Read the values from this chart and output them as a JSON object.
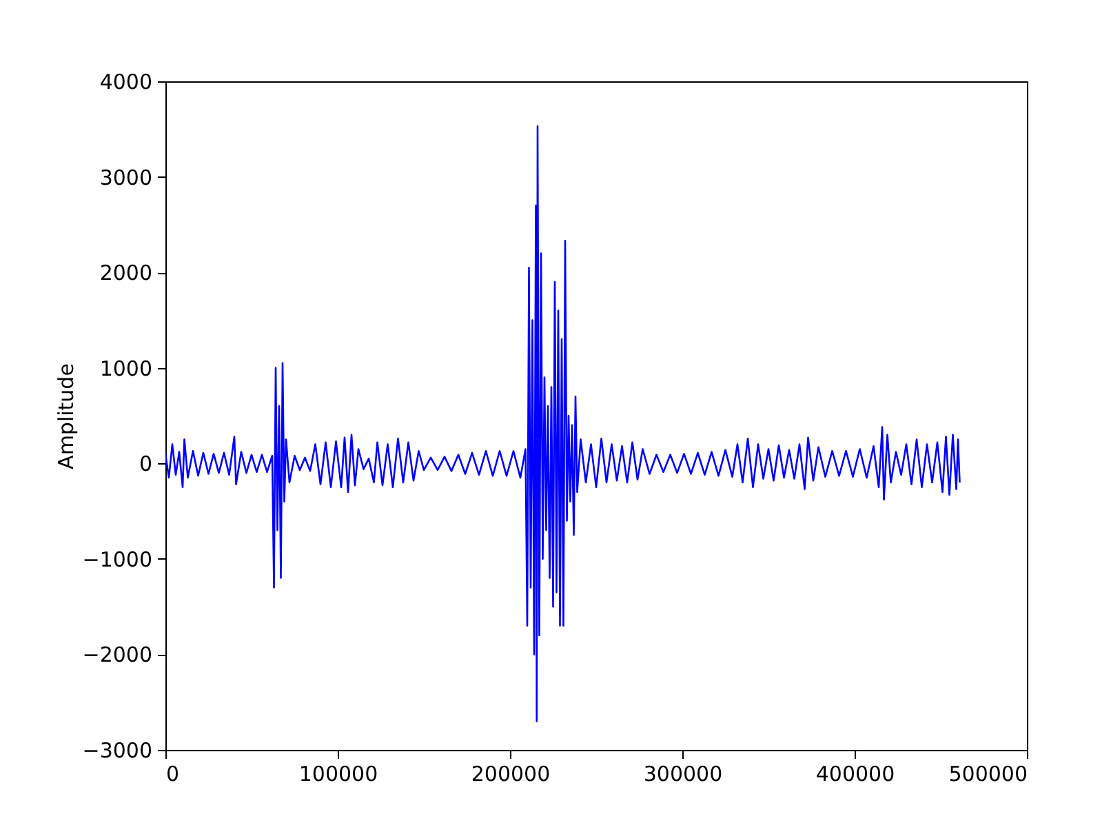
{
  "chart_data": {
    "type": "line",
    "ylabel": "Amplitude",
    "xlim": [
      0,
      500000
    ],
    "ylim": [
      -3000,
      4000
    ],
    "xticks": [
      0,
      100000,
      200000,
      300000,
      400000,
      500000
    ],
    "yticks": [
      -3000,
      -2000,
      -1000,
      0,
      1000,
      2000,
      3000,
      4000
    ],
    "grid": false,
    "x": [
      0,
      2000,
      4000,
      6000,
      8000,
      10000,
      11000,
      13000,
      16000,
      19000,
      22000,
      25000,
      28000,
      31000,
      34000,
      37000,
      40000,
      41000,
      44000,
      47000,
      50000,
      53000,
      56000,
      59000,
      62000,
      63000,
      64000,
      65000,
      66000,
      67000,
      68000,
      69000,
      70000,
      72000,
      75000,
      78000,
      81000,
      84000,
      87000,
      90000,
      93000,
      96000,
      99000,
      102000,
      104000,
      106000,
      108000,
      110000,
      112000,
      115000,
      118000,
      121000,
      123000,
      126000,
      129000,
      132000,
      135000,
      138000,
      141000,
      144000,
      147000,
      150000,
      154000,
      158000,
      162000,
      166000,
      170000,
      174000,
      178000,
      182000,
      186000,
      190000,
      194000,
      198000,
      202000,
      206000,
      209000,
      210000,
      211000,
      212000,
      213000,
      214000,
      215000,
      215500,
      216000,
      217000,
      218000,
      219000,
      220000,
      221000,
      222000,
      223000,
      224000,
      225000,
      226000,
      227000,
      228000,
      229000,
      230000,
      231000,
      232000,
      233000,
      234000,
      235000,
      236000,
      237000,
      238000,
      239000,
      241000,
      244000,
      247000,
      250000,
      253000,
      256000,
      259000,
      262000,
      265000,
      268000,
      271000,
      274000,
      277000,
      281000,
      285000,
      289000,
      293000,
      297000,
      301000,
      305000,
      309000,
      313000,
      317000,
      321000,
      325000,
      329000,
      332000,
      335000,
      338000,
      341000,
      344000,
      347000,
      350000,
      353000,
      356000,
      359000,
      362000,
      365000,
      368000,
      371000,
      373000,
      376000,
      379000,
      383000,
      387000,
      391000,
      395000,
      399000,
      403000,
      407000,
      411000,
      414000,
      416000,
      417000,
      419000,
      421000,
      424000,
      427000,
      430000,
      433000,
      436000,
      439000,
      442000,
      445000,
      448000,
      451000,
      453000,
      455000,
      457000,
      459000,
      460000,
      461000
    ],
    "series": [
      {
        "color": "#0000ff",
        "values": [
          100,
          -150,
          200,
          -120,
          120,
          -250,
          250,
          -150,
          130,
          -130,
          110,
          -110,
          100,
          -100,
          110,
          -120,
          280,
          -220,
          120,
          -100,
          90,
          -90,
          90,
          -90,
          80,
          -1300,
          1000,
          -700,
          600,
          -1200,
          1050,
          -400,
          250,
          -200,
          80,
          -70,
          60,
          -80,
          200,
          -220,
          220,
          -250,
          230,
          -250,
          270,
          -300,
          300,
          -230,
          150,
          -60,
          50,
          -200,
          220,
          -230,
          200,
          -250,
          260,
          -200,
          220,
          -180,
          130,
          -70,
          60,
          -70,
          70,
          -80,
          90,
          -110,
          110,
          -120,
          130,
          -130,
          130,
          -130,
          130,
          -150,
          150,
          -1700,
          2050,
          -1300,
          1500,
          -2000,
          2700,
          -2700,
          3530,
          -1800,
          2200,
          -1000,
          900,
          -700,
          600,
          -1200,
          800,
          -1500,
          1900,
          -1350,
          1600,
          -1700,
          1300,
          -1700,
          2330,
          -600,
          500,
          -400,
          400,
          -750,
          700,
          -300,
          250,
          -200,
          200,
          -250,
          260,
          -200,
          200,
          -180,
          180,
          -200,
          220,
          -170,
          150,
          -110,
          90,
          -90,
          90,
          -100,
          100,
          -110,
          110,
          -120,
          120,
          -130,
          140,
          -140,
          200,
          -200,
          260,
          -250,
          200,
          -160,
          150,
          -180,
          190,
          -150,
          140,
          -160,
          200,
          -270,
          270,
          -180,
          170,
          -140,
          130,
          -130,
          130,
          -140,
          150,
          -150,
          180,
          -250,
          380,
          -380,
          300,
          -200,
          120,
          -120,
          200,
          -220,
          250,
          -250,
          200,
          -200,
          220,
          -300,
          280,
          -330,
          300,
          -270,
          250,
          -200
        ]
      }
    ]
  }
}
